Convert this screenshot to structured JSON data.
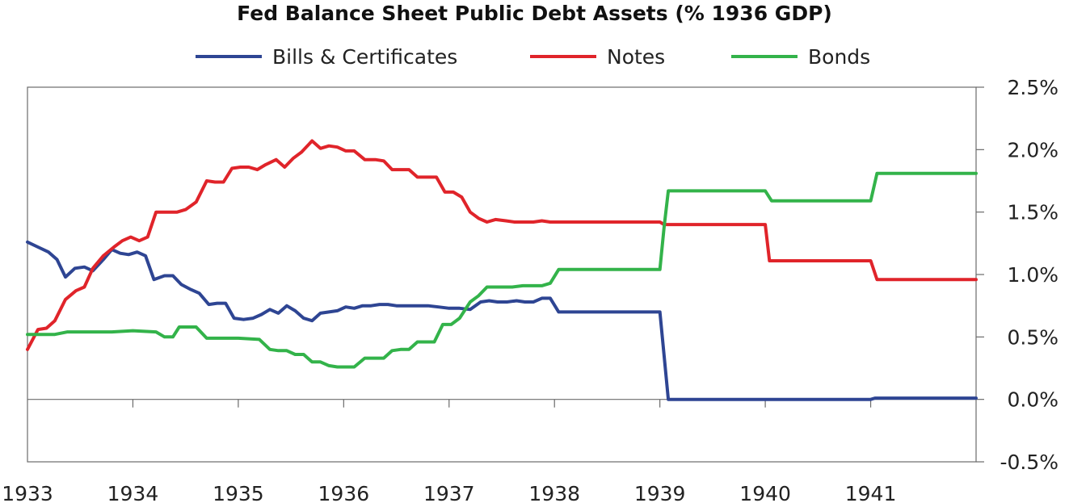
{
  "chart_data": {
    "type": "line",
    "title": "Fed Balance Sheet Public Debt Assets (% 1936 GDP)",
    "xlabel": "",
    "ylabel": "",
    "xlim": [
      1933,
      1942
    ],
    "ylim": [
      -0.5,
      2.5
    ],
    "x_ticks": [
      1933,
      1934,
      1935,
      1936,
      1937,
      1938,
      1939,
      1940,
      1941
    ],
    "x_tick_labels": [
      "1933",
      "1934",
      "1935",
      "1936",
      "1937",
      "1938",
      "1939",
      "1940",
      "1941"
    ],
    "y_ticks": [
      2.5,
      2.0,
      1.5,
      1.0,
      0.5,
      0.0,
      -0.5
    ],
    "y_tick_labels": [
      "2.5%",
      "2.0%",
      "1.5%",
      "1.0%",
      "0.5%",
      "0.0%",
      "-0.5%"
    ],
    "y_axis_side": "right",
    "legend_position": "top",
    "grid": false,
    "series": [
      {
        "name": "Bills & Certificates",
        "color": "#2e4593",
        "points": [
          [
            1933.0,
            1.26
          ],
          [
            1933.1,
            1.22
          ],
          [
            1933.2,
            1.18
          ],
          [
            1933.28,
            1.12
          ],
          [
            1933.36,
            0.98
          ],
          [
            1933.45,
            1.05
          ],
          [
            1933.54,
            1.06
          ],
          [
            1933.62,
            1.03
          ],
          [
            1933.72,
            1.12
          ],
          [
            1933.8,
            1.2
          ],
          [
            1933.88,
            1.17
          ],
          [
            1933.96,
            1.16
          ],
          [
            1934.04,
            1.18
          ],
          [
            1934.12,
            1.15
          ],
          [
            1934.2,
            0.96
          ],
          [
            1934.3,
            0.99
          ],
          [
            1934.38,
            0.99
          ],
          [
            1934.46,
            0.92
          ],
          [
            1934.55,
            0.88
          ],
          [
            1934.63,
            0.85
          ],
          [
            1934.72,
            0.76
          ],
          [
            1934.8,
            0.77
          ],
          [
            1934.88,
            0.77
          ],
          [
            1934.96,
            0.65
          ],
          [
            1935.05,
            0.64
          ],
          [
            1935.14,
            0.65
          ],
          [
            1935.22,
            0.68
          ],
          [
            1935.3,
            0.72
          ],
          [
            1935.38,
            0.69
          ],
          [
            1935.46,
            0.75
          ],
          [
            1935.54,
            0.71
          ],
          [
            1935.62,
            0.65
          ],
          [
            1935.7,
            0.63
          ],
          [
            1935.78,
            0.69
          ],
          [
            1935.86,
            0.7
          ],
          [
            1935.94,
            0.71
          ],
          [
            1936.02,
            0.74
          ],
          [
            1936.1,
            0.73
          ],
          [
            1936.18,
            0.75
          ],
          [
            1936.26,
            0.75
          ],
          [
            1936.34,
            0.76
          ],
          [
            1936.42,
            0.76
          ],
          [
            1936.5,
            0.75
          ],
          [
            1936.6,
            0.75
          ],
          [
            1936.7,
            0.75
          ],
          [
            1936.8,
            0.75
          ],
          [
            1936.9,
            0.74
          ],
          [
            1937.0,
            0.73
          ],
          [
            1937.1,
            0.73
          ],
          [
            1937.2,
            0.72
          ],
          [
            1937.3,
            0.78
          ],
          [
            1937.38,
            0.79
          ],
          [
            1937.46,
            0.78
          ],
          [
            1937.55,
            0.78
          ],
          [
            1937.64,
            0.79
          ],
          [
            1937.72,
            0.78
          ],
          [
            1937.8,
            0.78
          ],
          [
            1937.88,
            0.81
          ],
          [
            1937.96,
            0.81
          ],
          [
            1938.04,
            0.7
          ],
          [
            1938.5,
            0.7
          ],
          [
            1939.0,
            0.7
          ],
          [
            1939.04,
            0.35
          ],
          [
            1939.08,
            0.0
          ],
          [
            1940.0,
            0.0
          ],
          [
            1941.0,
            0.0
          ],
          [
            1941.04,
            0.01
          ],
          [
            1942.0,
            0.01
          ]
        ]
      },
      {
        "name": "Notes",
        "color": "#e0242a",
        "points": [
          [
            1933.0,
            0.4
          ],
          [
            1933.1,
            0.56
          ],
          [
            1933.18,
            0.57
          ],
          [
            1933.26,
            0.63
          ],
          [
            1933.36,
            0.8
          ],
          [
            1933.46,
            0.87
          ],
          [
            1933.54,
            0.9
          ],
          [
            1933.62,
            1.05
          ],
          [
            1933.72,
            1.15
          ],
          [
            1933.82,
            1.22
          ],
          [
            1933.9,
            1.27
          ],
          [
            1933.98,
            1.3
          ],
          [
            1934.06,
            1.27
          ],
          [
            1934.14,
            1.3
          ],
          [
            1934.22,
            1.5
          ],
          [
            1934.32,
            1.5
          ],
          [
            1934.42,
            1.5
          ],
          [
            1934.5,
            1.52
          ],
          [
            1934.6,
            1.58
          ],
          [
            1934.7,
            1.75
          ],
          [
            1934.78,
            1.74
          ],
          [
            1934.86,
            1.74
          ],
          [
            1934.94,
            1.85
          ],
          [
            1935.02,
            1.86
          ],
          [
            1935.1,
            1.86
          ],
          [
            1935.18,
            1.84
          ],
          [
            1935.26,
            1.88
          ],
          [
            1935.36,
            1.92
          ],
          [
            1935.44,
            1.86
          ],
          [
            1935.52,
            1.93
          ],
          [
            1935.6,
            1.98
          ],
          [
            1935.7,
            2.07
          ],
          [
            1935.78,
            2.01
          ],
          [
            1935.86,
            2.03
          ],
          [
            1935.94,
            2.02
          ],
          [
            1936.02,
            1.99
          ],
          [
            1936.1,
            1.99
          ],
          [
            1936.2,
            1.92
          ],
          [
            1936.3,
            1.92
          ],
          [
            1936.38,
            1.91
          ],
          [
            1936.46,
            1.84
          ],
          [
            1936.54,
            1.84
          ],
          [
            1936.62,
            1.84
          ],
          [
            1936.7,
            1.78
          ],
          [
            1936.78,
            1.78
          ],
          [
            1936.88,
            1.78
          ],
          [
            1936.96,
            1.66
          ],
          [
            1937.04,
            1.66
          ],
          [
            1937.12,
            1.62
          ],
          [
            1937.2,
            1.5
          ],
          [
            1937.28,
            1.45
          ],
          [
            1937.36,
            1.42
          ],
          [
            1937.44,
            1.44
          ],
          [
            1937.54,
            1.43
          ],
          [
            1937.62,
            1.42
          ],
          [
            1937.72,
            1.42
          ],
          [
            1937.8,
            1.42
          ],
          [
            1937.88,
            1.43
          ],
          [
            1937.96,
            1.42
          ],
          [
            1938.5,
            1.42
          ],
          [
            1939.0,
            1.42
          ],
          [
            1939.04,
            1.4
          ],
          [
            1940.0,
            1.4
          ],
          [
            1940.04,
            1.11
          ],
          [
            1941.0,
            1.11
          ],
          [
            1941.06,
            0.96
          ],
          [
            1942.0,
            0.96
          ]
        ]
      },
      {
        "name": "Bonds",
        "color": "#33b34a",
        "points": [
          [
            1933.0,
            0.52
          ],
          [
            1933.12,
            0.52
          ],
          [
            1933.26,
            0.52
          ],
          [
            1933.38,
            0.54
          ],
          [
            1933.6,
            0.54
          ],
          [
            1933.8,
            0.54
          ],
          [
            1934.0,
            0.55
          ],
          [
            1934.22,
            0.54
          ],
          [
            1934.3,
            0.5
          ],
          [
            1934.38,
            0.5
          ],
          [
            1934.44,
            0.58
          ],
          [
            1934.6,
            0.58
          ],
          [
            1934.7,
            0.49
          ],
          [
            1934.86,
            0.49
          ],
          [
            1935.0,
            0.49
          ],
          [
            1935.2,
            0.48
          ],
          [
            1935.3,
            0.4
          ],
          [
            1935.38,
            0.39
          ],
          [
            1935.46,
            0.39
          ],
          [
            1935.54,
            0.36
          ],
          [
            1935.62,
            0.36
          ],
          [
            1935.7,
            0.3
          ],
          [
            1935.78,
            0.3
          ],
          [
            1935.86,
            0.27
          ],
          [
            1935.94,
            0.26
          ],
          [
            1936.1,
            0.26
          ],
          [
            1936.2,
            0.33
          ],
          [
            1936.3,
            0.33
          ],
          [
            1936.38,
            0.33
          ],
          [
            1936.46,
            0.39
          ],
          [
            1936.54,
            0.4
          ],
          [
            1936.62,
            0.4
          ],
          [
            1936.7,
            0.46
          ],
          [
            1936.78,
            0.46
          ],
          [
            1936.86,
            0.46
          ],
          [
            1936.94,
            0.6
          ],
          [
            1937.02,
            0.6
          ],
          [
            1937.1,
            0.65
          ],
          [
            1937.2,
            0.78
          ],
          [
            1937.28,
            0.83
          ],
          [
            1937.36,
            0.9
          ],
          [
            1937.5,
            0.9
          ],
          [
            1937.6,
            0.9
          ],
          [
            1937.7,
            0.91
          ],
          [
            1937.8,
            0.91
          ],
          [
            1937.88,
            0.91
          ],
          [
            1937.96,
            0.93
          ],
          [
            1938.04,
            1.04
          ],
          [
            1938.5,
            1.04
          ],
          [
            1939.0,
            1.04
          ],
          [
            1939.04,
            1.38
          ],
          [
            1939.08,
            1.67
          ],
          [
            1940.0,
            1.67
          ],
          [
            1940.06,
            1.59
          ],
          [
            1941.0,
            1.59
          ],
          [
            1941.06,
            1.81
          ],
          [
            1942.0,
            1.81
          ]
        ]
      }
    ]
  }
}
